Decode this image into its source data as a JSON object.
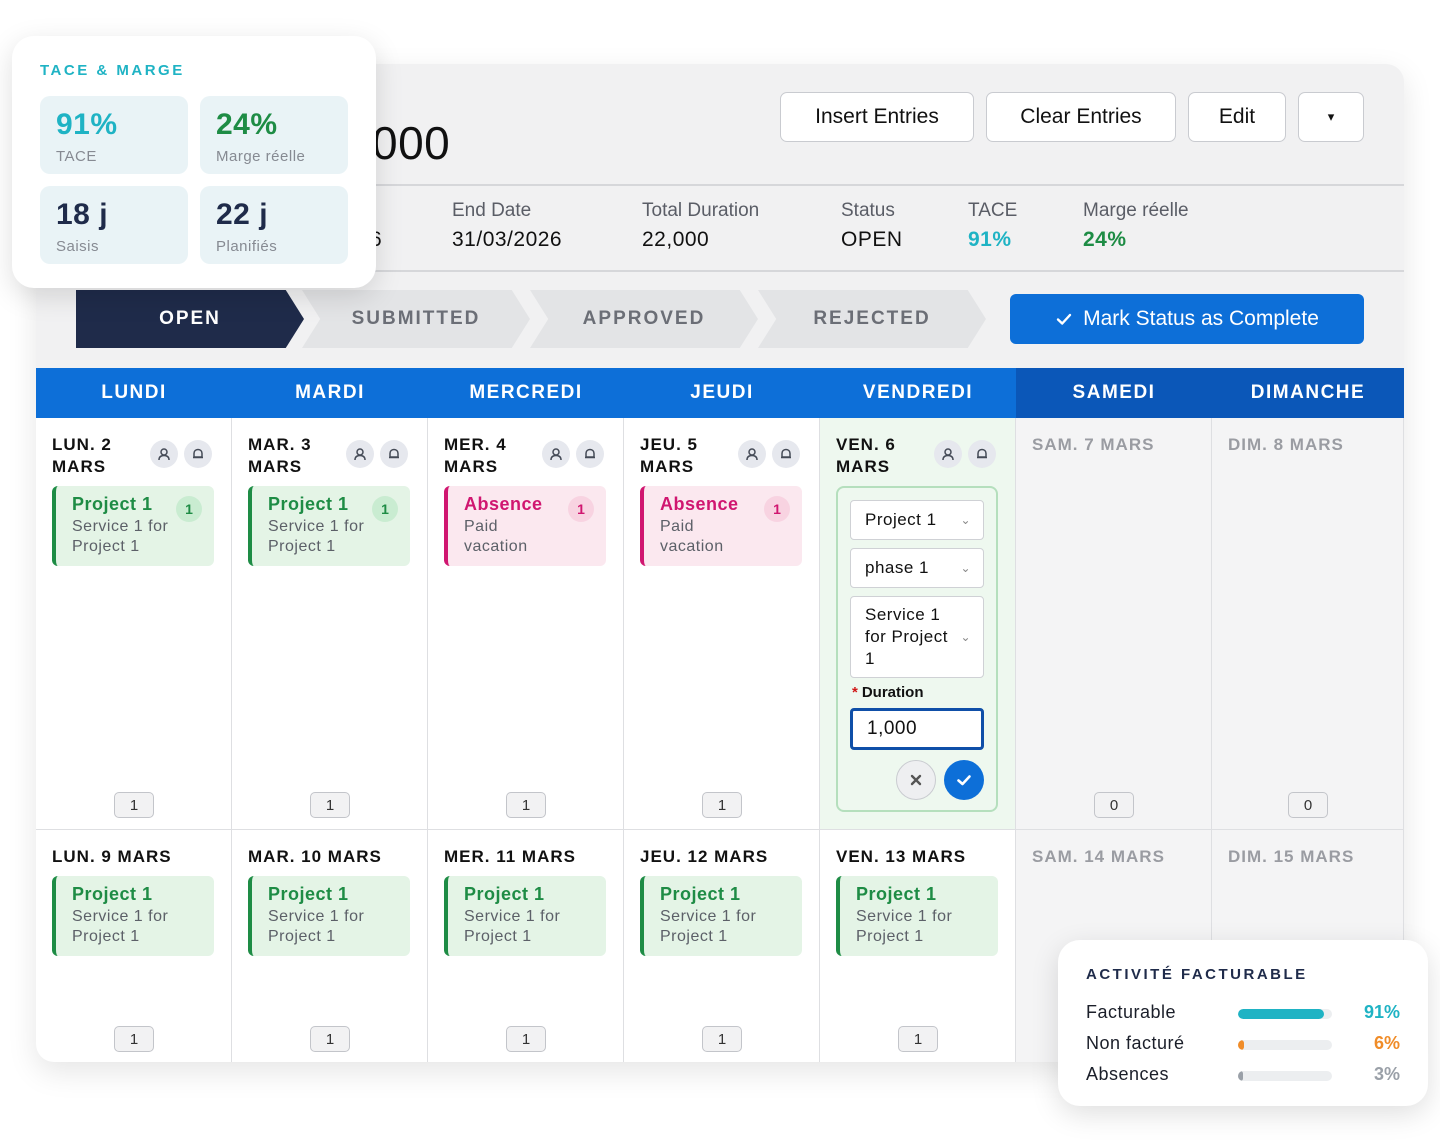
{
  "header": {
    "title_fragment": "000",
    "buttons": {
      "insert": "Insert Entries",
      "clear": "Clear Entries",
      "edit": "Edit",
      "more": "▾"
    }
  },
  "info": {
    "start_fragment": "6",
    "end_date_label": "End Date",
    "end_date_value": "31/03/2026",
    "total_duration_label": "Total Duration",
    "total_duration_value": "22,000",
    "status_label": "Status",
    "status_value": "OPEN",
    "tace_label": "TACE",
    "tace_value": "91%",
    "marge_label": "Marge réelle",
    "marge_value": "24%"
  },
  "steps": [
    "OPEN",
    "SUBMITTED",
    "APPROVED",
    "REJECTED"
  ],
  "active_step": "OPEN",
  "complete_button": "Mark Status as Complete",
  "weekdays": [
    "LUNDI",
    "MARDI",
    "MERCREDI",
    "JEUDI",
    "VENDREDI",
    "SAMEDI",
    "DIMANCHE"
  ],
  "week1": [
    {
      "date_l1": "LUN. 2",
      "date_l2": "MARS",
      "entry": {
        "kind": "project",
        "title": "Project 1",
        "sub1": "Service 1 for",
        "sub2": "Project 1",
        "badge": "1"
      },
      "count": "1"
    },
    {
      "date_l1": "MAR. 3",
      "date_l2": "MARS",
      "entry": {
        "kind": "project",
        "title": "Project 1",
        "sub1": "Service 1 for",
        "sub2": "Project 1",
        "badge": "1"
      },
      "count": "1"
    },
    {
      "date_l1": "MER. 4",
      "date_l2": "MARS",
      "entry": {
        "kind": "absence",
        "title": "Absence",
        "sub1": "Paid",
        "sub2": "vacation",
        "badge": "1"
      },
      "count": "1"
    },
    {
      "date_l1": "JEU. 5",
      "date_l2": "MARS",
      "entry": {
        "kind": "absence",
        "title": "Absence",
        "sub1": "Paid",
        "sub2": "vacation",
        "badge": "1"
      },
      "count": "1"
    },
    {
      "date_l1": "VEN. 6",
      "date_l2": "MARS"
    },
    {
      "date_l1": "SAM. 7 MARS",
      "date_l2": "",
      "count": "0"
    },
    {
      "date_l1": "DIM. 8 MARS",
      "date_l2": "",
      "count": "0"
    }
  ],
  "edit_form": {
    "project": "Project 1",
    "phase": "phase 1",
    "service_l1": "Service 1",
    "service_l2": "for Project",
    "service_l3": "1",
    "duration_label": "Duration",
    "duration_value": "1,000"
  },
  "week2": [
    {
      "date": "LUN. 9 MARS",
      "entry": {
        "title": "Project 1",
        "sub1": "Service 1 for",
        "sub2": "Project 1"
      },
      "count": "1"
    },
    {
      "date": "MAR. 10 MARS",
      "entry": {
        "title": "Project 1",
        "sub1": "Service 1 for",
        "sub2": "Project 1"
      },
      "count": "1"
    },
    {
      "date": "MER. 11 MARS",
      "entry": {
        "title": "Project 1",
        "sub1": "Service 1 for",
        "sub2": "Project 1"
      },
      "count": "1"
    },
    {
      "date": "JEU. 12 MARS",
      "entry": {
        "title": "Project 1",
        "sub1": "Service 1 for",
        "sub2": "Project 1"
      },
      "count": "1"
    },
    {
      "date": "VEN. 13 MARS",
      "entry": {
        "title": "Project 1",
        "sub1": "Service 1 for",
        "sub2": "Project 1"
      },
      "count": "1"
    },
    {
      "date": "SAM. 14 MARS"
    },
    {
      "date": "DIM. 15 MARS"
    }
  ],
  "kpi_card": {
    "title": "TACE & MARGE",
    "items": [
      {
        "value": "91%",
        "label": "TACE",
        "color": "#1fb3c4"
      },
      {
        "value": "24%",
        "label": "Marge réelle",
        "color": "#1e8c45"
      },
      {
        "value": "18 j",
        "label": "Saisis",
        "color": "#1f2b4a"
      },
      {
        "value": "22 j",
        "label": "Planifiés",
        "color": "#1f2b4a"
      }
    ]
  },
  "billable_card": {
    "title": "ACTIVITÉ FACTURABLE",
    "rows": [
      {
        "label": "Facturable",
        "percent": "91%",
        "fraction": 0.91,
        "color": "#1fb3c4"
      },
      {
        "label": "Non facturé",
        "percent": "6%",
        "fraction": 0.06,
        "color": "#f08c28"
      },
      {
        "label": "Absences",
        "percent": "3%",
        "fraction": 0.03,
        "color": "#9aa0a8"
      }
    ]
  },
  "colors": {
    "weekday_header": "#0d6fd8",
    "weekend_header": "#0b57b8",
    "step_active": "#1f2b4a",
    "primary": "#0d6fd8"
  }
}
